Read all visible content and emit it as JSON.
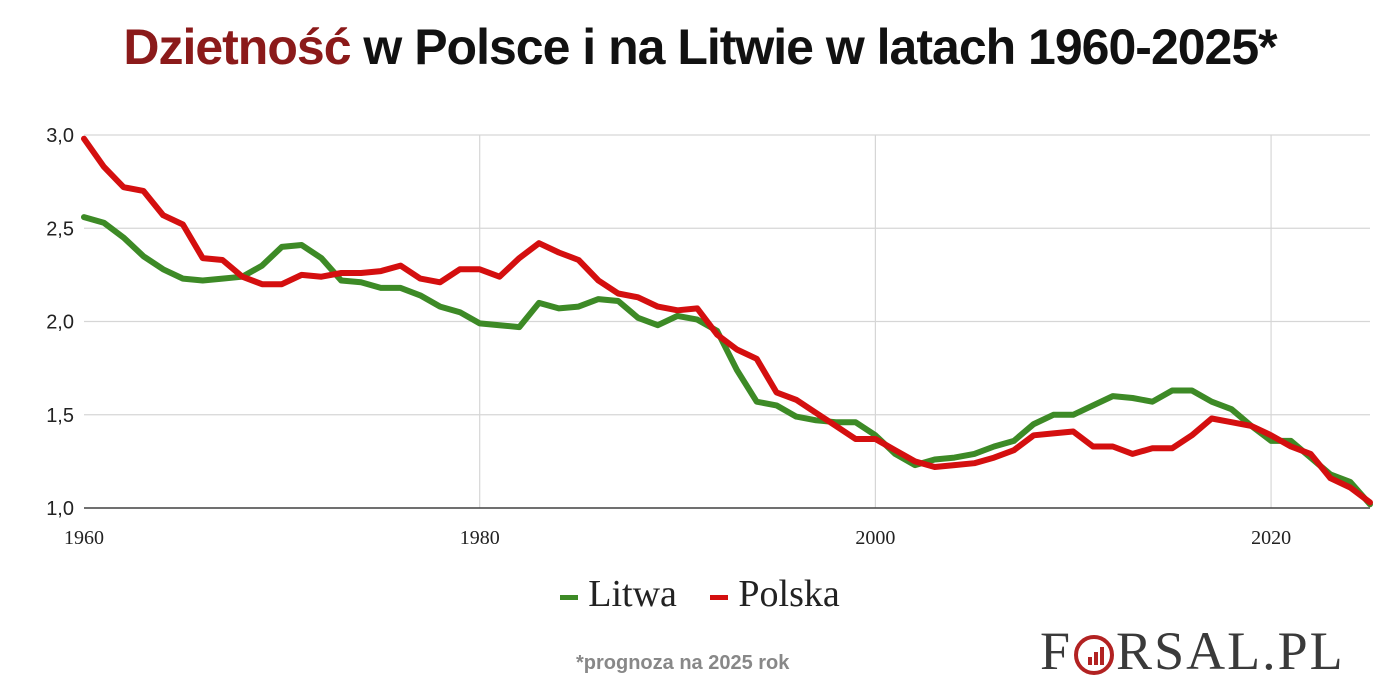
{
  "title": {
    "highlight": "Dzietność",
    "rest": " w Polsce i na Litwie w latach 1960-2025*"
  },
  "legend": {
    "items": [
      {
        "label": "Litwa",
        "color": "#3d8a26"
      },
      {
        "label": "Polska",
        "color": "#d40f0f"
      }
    ]
  },
  "footnote": "*prognoza na 2025 rok",
  "logo": {
    "text": "FORSAL.PL"
  },
  "chart_data": {
    "type": "line",
    "x_ticks": [
      1960,
      1980,
      2000,
      2020
    ],
    "y_ticks": [
      1.0,
      1.5,
      2.0,
      2.5,
      3.0
    ],
    "y_tick_labels": [
      "1,0",
      "1,5",
      "2,0",
      "2,5",
      "3,0"
    ],
    "xlim": [
      1960,
      2025
    ],
    "ylim": [
      1.0,
      3.0
    ],
    "grid": true,
    "legend_position": "bottom",
    "x": [
      1960,
      1961,
      1962,
      1963,
      1964,
      1965,
      1966,
      1967,
      1968,
      1969,
      1970,
      1971,
      1972,
      1973,
      1974,
      1975,
      1976,
      1977,
      1978,
      1979,
      1980,
      1981,
      1982,
      1983,
      1984,
      1985,
      1986,
      1987,
      1988,
      1989,
      1990,
      1991,
      1992,
      1993,
      1994,
      1995,
      1996,
      1997,
      1998,
      1999,
      2000,
      2001,
      2002,
      2003,
      2004,
      2005,
      2006,
      2007,
      2008,
      2009,
      2010,
      2011,
      2012,
      2013,
      2014,
      2015,
      2016,
      2017,
      2018,
      2019,
      2020,
      2021,
      2022,
      2023,
      2024,
      2025
    ],
    "series": [
      {
        "name": "Litwa",
        "color": "#3d8a26",
        "values": [
          2.56,
          2.53,
          2.45,
          2.35,
          2.28,
          2.23,
          2.22,
          2.23,
          2.24,
          2.3,
          2.4,
          2.41,
          2.34,
          2.22,
          2.21,
          2.18,
          2.18,
          2.14,
          2.08,
          2.05,
          1.99,
          1.98,
          1.97,
          2.1,
          2.07,
          2.08,
          2.12,
          2.11,
          2.02,
          1.98,
          2.03,
          2.01,
          1.95,
          1.74,
          1.57,
          1.55,
          1.49,
          1.47,
          1.46,
          1.46,
          1.39,
          1.29,
          1.23,
          1.26,
          1.27,
          1.29,
          1.33,
          1.36,
          1.45,
          1.5,
          1.5,
          1.55,
          1.6,
          1.59,
          1.57,
          1.63,
          1.63,
          1.57,
          1.53,
          1.44,
          1.36,
          1.36,
          1.27,
          1.18,
          1.14,
          1.02
        ]
      },
      {
        "name": "Polska",
        "color": "#d40f0f",
        "values": [
          2.98,
          2.83,
          2.72,
          2.7,
          2.57,
          2.52,
          2.34,
          2.33,
          2.24,
          2.2,
          2.2,
          2.25,
          2.24,
          2.26,
          2.26,
          2.27,
          2.3,
          2.23,
          2.21,
          2.28,
          2.28,
          2.24,
          2.34,
          2.42,
          2.37,
          2.33,
          2.22,
          2.15,
          2.13,
          2.08,
          2.06,
          2.07,
          1.93,
          1.85,
          1.8,
          1.62,
          1.58,
          1.51,
          1.44,
          1.37,
          1.37,
          1.31,
          1.25,
          1.22,
          1.23,
          1.24,
          1.27,
          1.31,
          1.39,
          1.4,
          1.41,
          1.33,
          1.33,
          1.29,
          1.32,
          1.32,
          1.39,
          1.48,
          1.46,
          1.44,
          1.39,
          1.33,
          1.29,
          1.16,
          1.11,
          1.03
        ]
      }
    ]
  }
}
